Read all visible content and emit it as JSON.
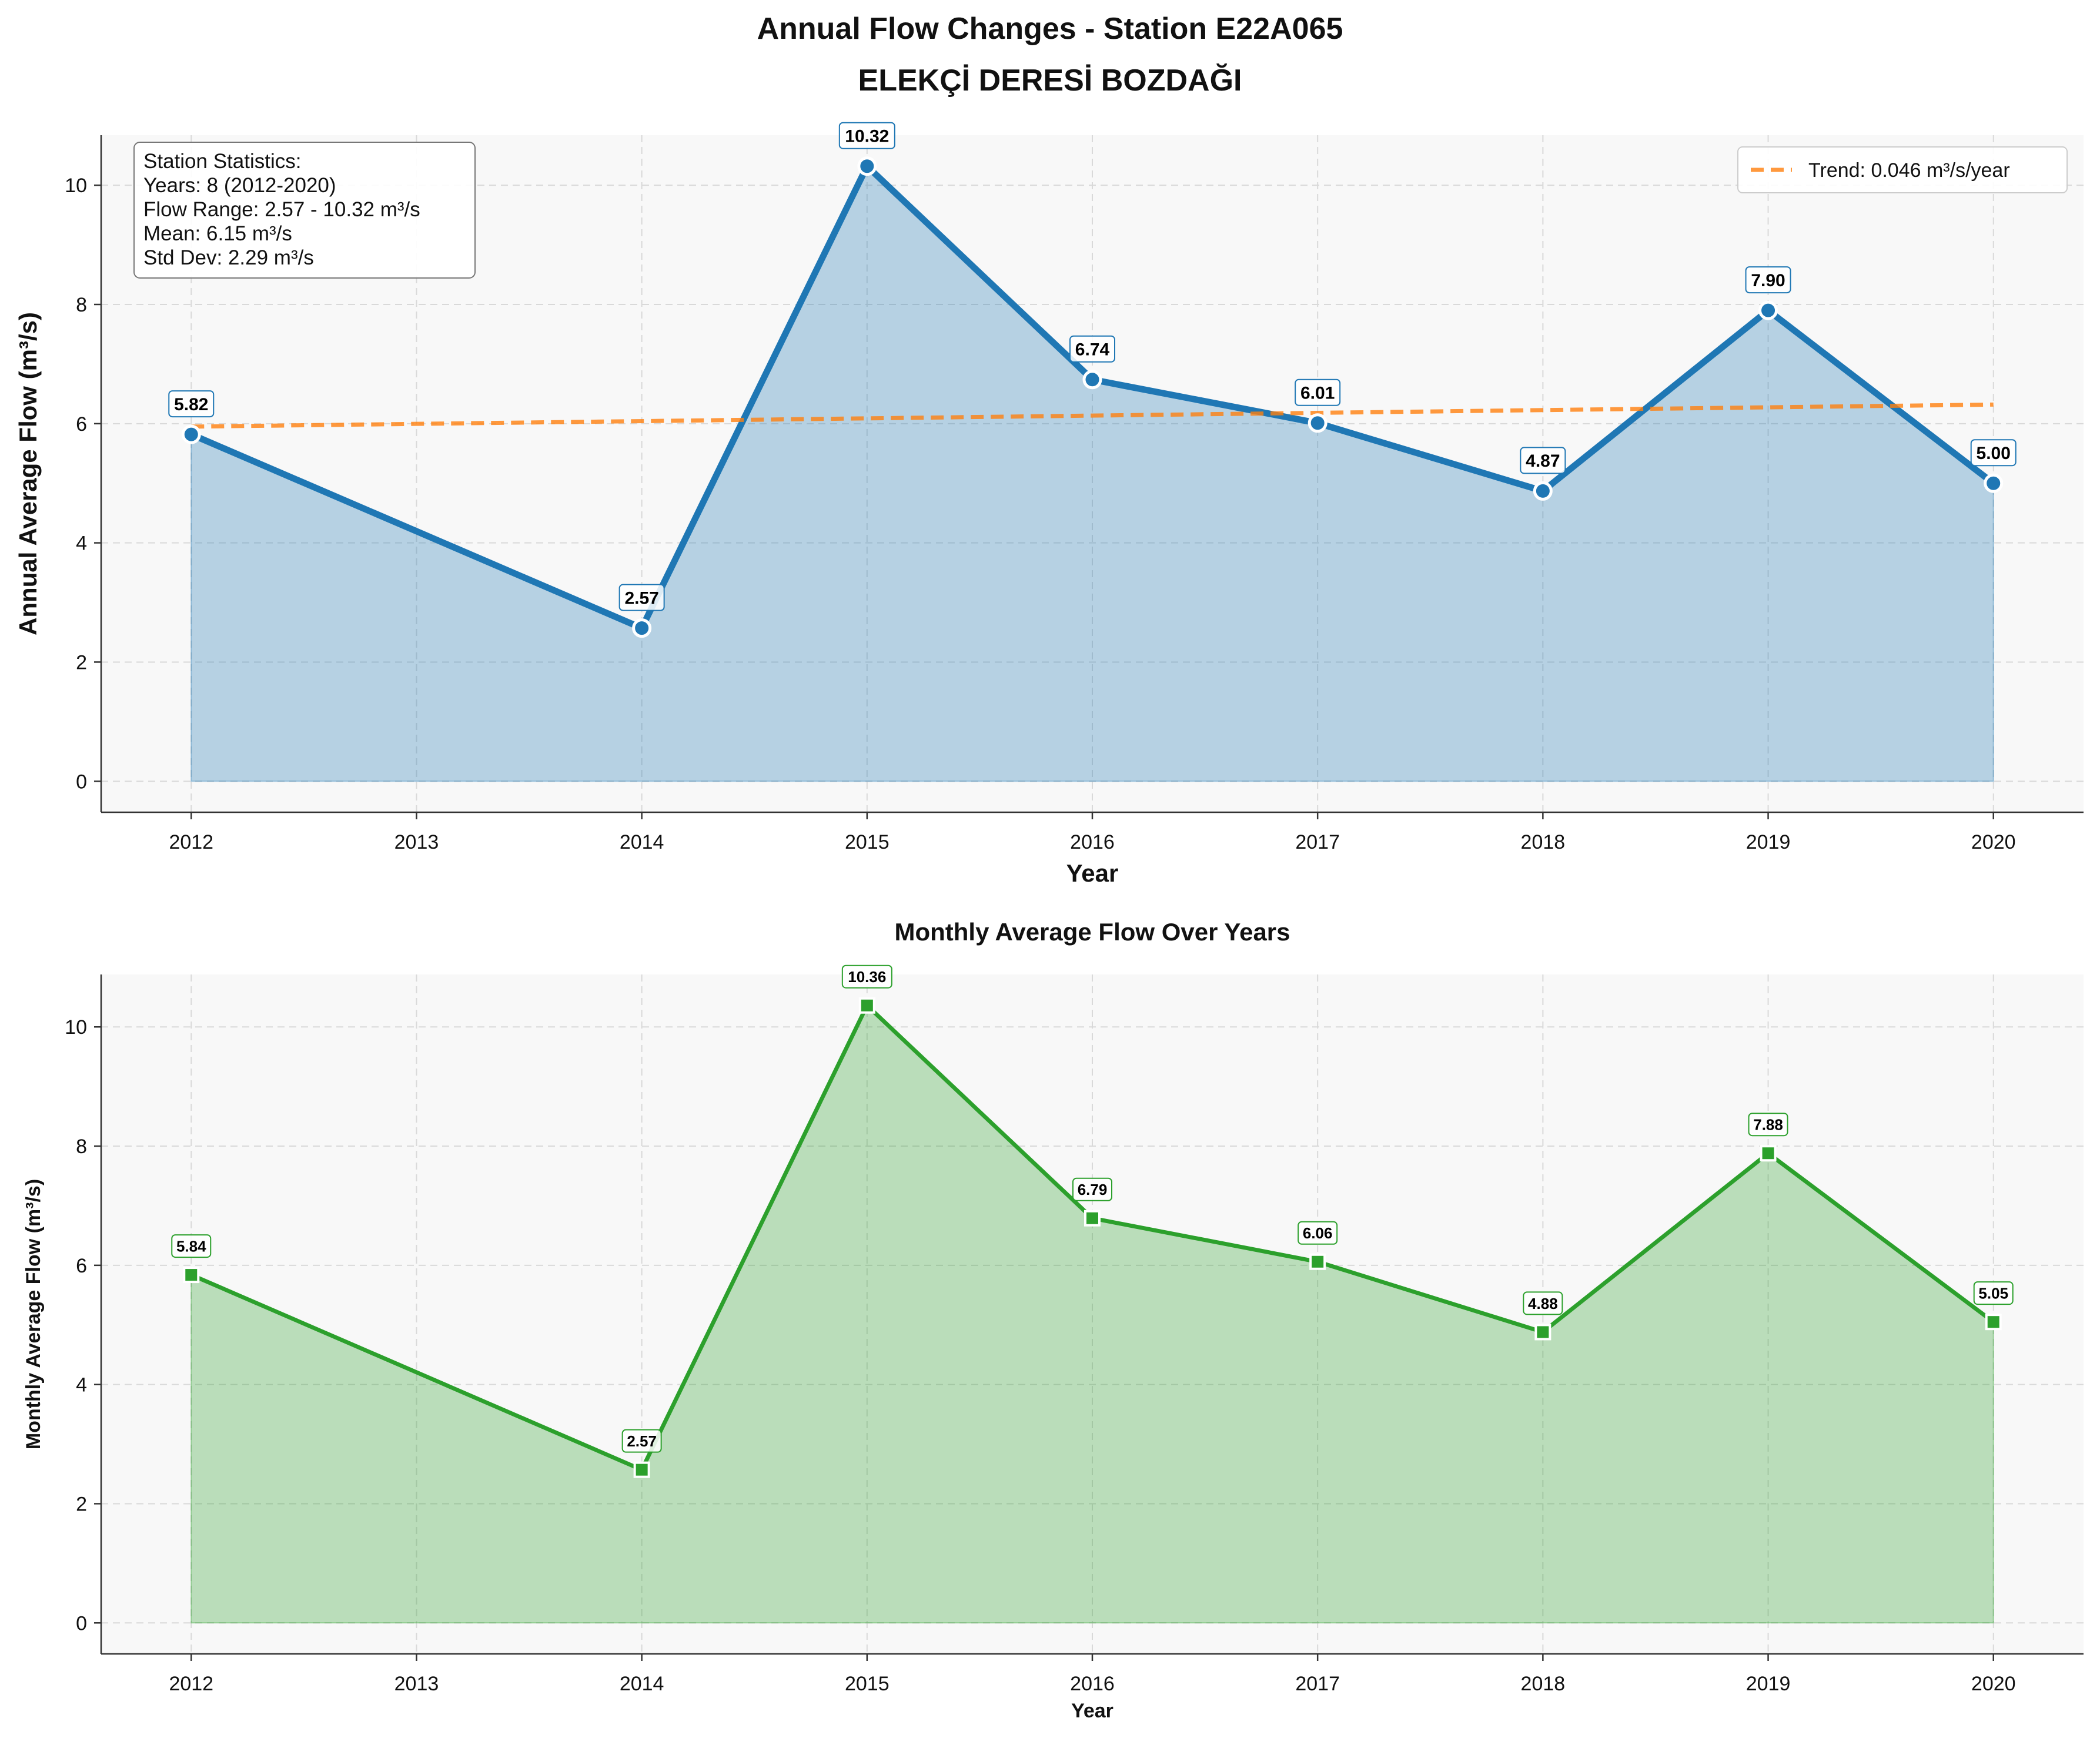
{
  "figure": {
    "title_line1": "Annual Flow Changes - Station E22A065",
    "title_line2": "ELEKÇİ DERESİ BOZDAĞI"
  },
  "chart_data": [
    {
      "type": "area",
      "title": "",
      "xlabel": "Year",
      "ylabel": "Annual Average Flow (m³/s)",
      "x": [
        2012,
        2014,
        2015,
        2016,
        2017,
        2018,
        2019,
        2020
      ],
      "xlim": [
        2011.6,
        2020.4
      ],
      "xticks": [
        "2012",
        "2013",
        "2014",
        "2015",
        "2016",
        "2017",
        "2018",
        "2019",
        "2020"
      ],
      "ylim": [
        -0.52,
        10.84
      ],
      "yticks": [
        "0",
        "2",
        "4",
        "6",
        "8",
        "10"
      ],
      "grid": true,
      "series": [
        {
          "name": "",
          "values": [
            5.82,
            2.57,
            10.32,
            6.74,
            6.01,
            4.87,
            7.9,
            5.0
          ],
          "labels": [
            "5.82",
            "2.57",
            "10.32",
            "6.74",
            "6.01",
            "4.87",
            "7.90",
            "5.00"
          ],
          "color": "#1f77b4",
          "marker": "circle"
        }
      ],
      "trend": {
        "name": "Trend: 0.046 m³/s/year",
        "start": [
          2012,
          5.95
        ],
        "end": [
          2020,
          6.32
        ],
        "color": "#ff7f0e"
      },
      "legend_position": "top-right",
      "stats_box": {
        "lines": [
          "Station Statistics:",
          "Years: 8 (2012-2020)",
          "Flow Range: 2.57 - 10.32 m³/s",
          "Mean: 6.15 m³/s",
          "Std Dev: 2.29 m³/s"
        ],
        "position": "top-left"
      }
    },
    {
      "type": "area",
      "title": "Monthly Average Flow Over Years",
      "xlabel": "Year",
      "ylabel": "Monthly Average Flow (m³/s)",
      "x": [
        2012,
        2014,
        2015,
        2016,
        2017,
        2018,
        2019,
        2020
      ],
      "xlim": [
        2011.6,
        2020.4
      ],
      "xticks": [
        "2012",
        "2013",
        "2014",
        "2015",
        "2016",
        "2017",
        "2018",
        "2019",
        "2020"
      ],
      "ylim": [
        -0.52,
        10.88
      ],
      "yticks": [
        "0",
        "2",
        "4",
        "6",
        "8",
        "10"
      ],
      "grid": true,
      "series": [
        {
          "name": "",
          "values": [
            5.84,
            2.57,
            10.36,
            6.79,
            6.06,
            4.88,
            7.88,
            5.05
          ],
          "labels": [
            "5.84",
            "2.57",
            "10.36",
            "6.79",
            "6.06",
            "4.88",
            "7.88",
            "5.05"
          ],
          "color": "#2ca02c",
          "marker": "square"
        }
      ]
    }
  ]
}
